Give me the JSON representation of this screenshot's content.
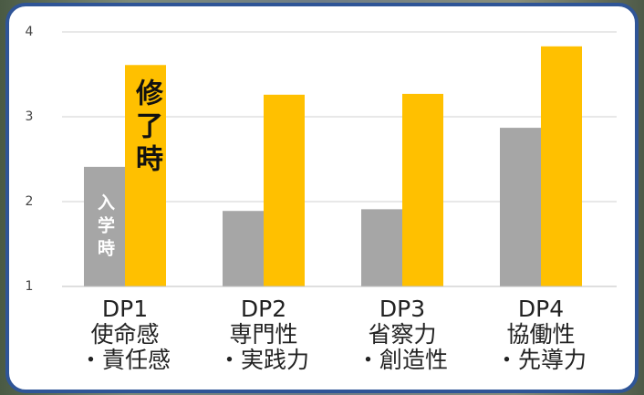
{
  "chart_data": {
    "type": "bar",
    "categories": [
      [
        "DP1",
        "使命感",
        "・責任感"
      ],
      [
        "DP2",
        "専門性",
        "・実践力"
      ],
      [
        "DP3",
        "省察力",
        "・創造性"
      ],
      [
        "DP4",
        "協働性",
        "・先導力"
      ]
    ],
    "series": [
      {
        "name": "入学時",
        "color": "#a6a6a6",
        "values": [
          2.41,
          1.89,
          1.91,
          2.87
        ]
      },
      {
        "name": "修了時",
        "color": "#ffc000",
        "values": [
          3.61,
          3.26,
          3.27,
          3.83
        ]
      }
    ],
    "ylim": [
      1,
      4
    ],
    "yticks": [
      1,
      2,
      3,
      4
    ],
    "grid": true
  }
}
